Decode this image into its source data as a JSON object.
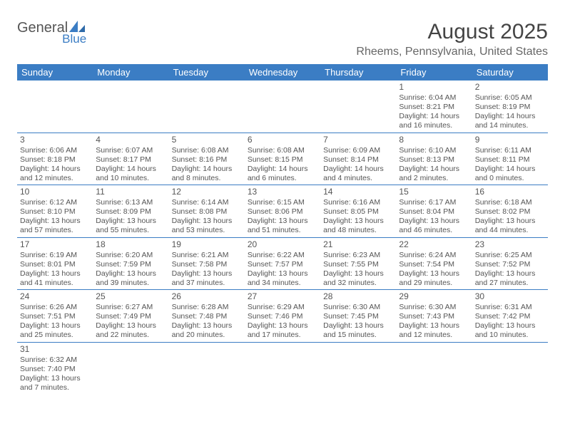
{
  "brand": {
    "name1": "General",
    "name2": "Blue"
  },
  "title": "August 2025",
  "location": "Rheems, Pennsylvania, United States",
  "colors": {
    "header_bg": "#3b7dc4",
    "header_text": "#ffffff",
    "border": "#3b7dc4",
    "text": "#555555"
  },
  "weekdays": [
    "Sunday",
    "Monday",
    "Tuesday",
    "Wednesday",
    "Thursday",
    "Friday",
    "Saturday"
  ],
  "weeks": [
    [
      null,
      null,
      null,
      null,
      null,
      {
        "d": "1",
        "sr": "Sunrise: 6:04 AM",
        "ss": "Sunset: 8:21 PM",
        "dl1": "Daylight: 14 hours",
        "dl2": "and 16 minutes."
      },
      {
        "d": "2",
        "sr": "Sunrise: 6:05 AM",
        "ss": "Sunset: 8:19 PM",
        "dl1": "Daylight: 14 hours",
        "dl2": "and 14 minutes."
      }
    ],
    [
      {
        "d": "3",
        "sr": "Sunrise: 6:06 AM",
        "ss": "Sunset: 8:18 PM",
        "dl1": "Daylight: 14 hours",
        "dl2": "and 12 minutes."
      },
      {
        "d": "4",
        "sr": "Sunrise: 6:07 AM",
        "ss": "Sunset: 8:17 PM",
        "dl1": "Daylight: 14 hours",
        "dl2": "and 10 minutes."
      },
      {
        "d": "5",
        "sr": "Sunrise: 6:08 AM",
        "ss": "Sunset: 8:16 PM",
        "dl1": "Daylight: 14 hours",
        "dl2": "and 8 minutes."
      },
      {
        "d": "6",
        "sr": "Sunrise: 6:08 AM",
        "ss": "Sunset: 8:15 PM",
        "dl1": "Daylight: 14 hours",
        "dl2": "and 6 minutes."
      },
      {
        "d": "7",
        "sr": "Sunrise: 6:09 AM",
        "ss": "Sunset: 8:14 PM",
        "dl1": "Daylight: 14 hours",
        "dl2": "and 4 minutes."
      },
      {
        "d": "8",
        "sr": "Sunrise: 6:10 AM",
        "ss": "Sunset: 8:13 PM",
        "dl1": "Daylight: 14 hours",
        "dl2": "and 2 minutes."
      },
      {
        "d": "9",
        "sr": "Sunrise: 6:11 AM",
        "ss": "Sunset: 8:11 PM",
        "dl1": "Daylight: 14 hours",
        "dl2": "and 0 minutes."
      }
    ],
    [
      {
        "d": "10",
        "sr": "Sunrise: 6:12 AM",
        "ss": "Sunset: 8:10 PM",
        "dl1": "Daylight: 13 hours",
        "dl2": "and 57 minutes."
      },
      {
        "d": "11",
        "sr": "Sunrise: 6:13 AM",
        "ss": "Sunset: 8:09 PM",
        "dl1": "Daylight: 13 hours",
        "dl2": "and 55 minutes."
      },
      {
        "d": "12",
        "sr": "Sunrise: 6:14 AM",
        "ss": "Sunset: 8:08 PM",
        "dl1": "Daylight: 13 hours",
        "dl2": "and 53 minutes."
      },
      {
        "d": "13",
        "sr": "Sunrise: 6:15 AM",
        "ss": "Sunset: 8:06 PM",
        "dl1": "Daylight: 13 hours",
        "dl2": "and 51 minutes."
      },
      {
        "d": "14",
        "sr": "Sunrise: 6:16 AM",
        "ss": "Sunset: 8:05 PM",
        "dl1": "Daylight: 13 hours",
        "dl2": "and 48 minutes."
      },
      {
        "d": "15",
        "sr": "Sunrise: 6:17 AM",
        "ss": "Sunset: 8:04 PM",
        "dl1": "Daylight: 13 hours",
        "dl2": "and 46 minutes."
      },
      {
        "d": "16",
        "sr": "Sunrise: 6:18 AM",
        "ss": "Sunset: 8:02 PM",
        "dl1": "Daylight: 13 hours",
        "dl2": "and 44 minutes."
      }
    ],
    [
      {
        "d": "17",
        "sr": "Sunrise: 6:19 AM",
        "ss": "Sunset: 8:01 PM",
        "dl1": "Daylight: 13 hours",
        "dl2": "and 41 minutes."
      },
      {
        "d": "18",
        "sr": "Sunrise: 6:20 AM",
        "ss": "Sunset: 7:59 PM",
        "dl1": "Daylight: 13 hours",
        "dl2": "and 39 minutes."
      },
      {
        "d": "19",
        "sr": "Sunrise: 6:21 AM",
        "ss": "Sunset: 7:58 PM",
        "dl1": "Daylight: 13 hours",
        "dl2": "and 37 minutes."
      },
      {
        "d": "20",
        "sr": "Sunrise: 6:22 AM",
        "ss": "Sunset: 7:57 PM",
        "dl1": "Daylight: 13 hours",
        "dl2": "and 34 minutes."
      },
      {
        "d": "21",
        "sr": "Sunrise: 6:23 AM",
        "ss": "Sunset: 7:55 PM",
        "dl1": "Daylight: 13 hours",
        "dl2": "and 32 minutes."
      },
      {
        "d": "22",
        "sr": "Sunrise: 6:24 AM",
        "ss": "Sunset: 7:54 PM",
        "dl1": "Daylight: 13 hours",
        "dl2": "and 29 minutes."
      },
      {
        "d": "23",
        "sr": "Sunrise: 6:25 AM",
        "ss": "Sunset: 7:52 PM",
        "dl1": "Daylight: 13 hours",
        "dl2": "and 27 minutes."
      }
    ],
    [
      {
        "d": "24",
        "sr": "Sunrise: 6:26 AM",
        "ss": "Sunset: 7:51 PM",
        "dl1": "Daylight: 13 hours",
        "dl2": "and 25 minutes."
      },
      {
        "d": "25",
        "sr": "Sunrise: 6:27 AM",
        "ss": "Sunset: 7:49 PM",
        "dl1": "Daylight: 13 hours",
        "dl2": "and 22 minutes."
      },
      {
        "d": "26",
        "sr": "Sunrise: 6:28 AM",
        "ss": "Sunset: 7:48 PM",
        "dl1": "Daylight: 13 hours",
        "dl2": "and 20 minutes."
      },
      {
        "d": "27",
        "sr": "Sunrise: 6:29 AM",
        "ss": "Sunset: 7:46 PM",
        "dl1": "Daylight: 13 hours",
        "dl2": "and 17 minutes."
      },
      {
        "d": "28",
        "sr": "Sunrise: 6:30 AM",
        "ss": "Sunset: 7:45 PM",
        "dl1": "Daylight: 13 hours",
        "dl2": "and 15 minutes."
      },
      {
        "d": "29",
        "sr": "Sunrise: 6:30 AM",
        "ss": "Sunset: 7:43 PM",
        "dl1": "Daylight: 13 hours",
        "dl2": "and 12 minutes."
      },
      {
        "d": "30",
        "sr": "Sunrise: 6:31 AM",
        "ss": "Sunset: 7:42 PM",
        "dl1": "Daylight: 13 hours",
        "dl2": "and 10 minutes."
      }
    ],
    [
      {
        "d": "31",
        "sr": "Sunrise: 6:32 AM",
        "ss": "Sunset: 7:40 PM",
        "dl1": "Daylight: 13 hours",
        "dl2": "and 7 minutes."
      },
      null,
      null,
      null,
      null,
      null,
      null
    ]
  ]
}
